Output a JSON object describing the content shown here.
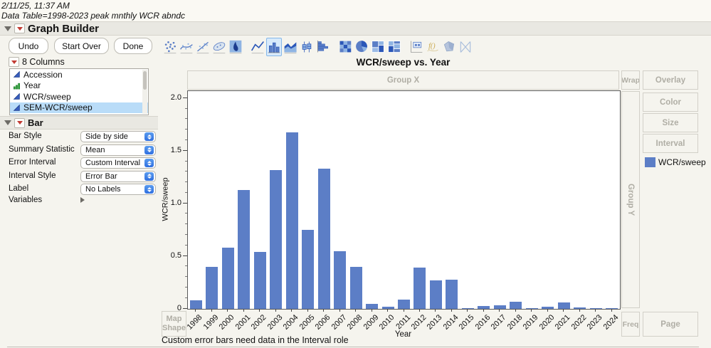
{
  "window": {
    "timestamp": "2/11/25, 11:37 AM",
    "data_table_line": "Data Table=1998-2023 peak mnthly WCR abndc",
    "outline_title": "Graph Builder",
    "status_message": "Custom error bars need data in the Interval role"
  },
  "toolbar": {
    "buttons": [
      "Undo",
      "Start Over",
      "Done"
    ],
    "element_icons": [
      "points",
      "smoother",
      "line-of-fit",
      "ellipse",
      "contour",
      "line",
      "bar",
      "area",
      "box-plot",
      "histogram",
      "heatmap",
      "pie",
      "treemap",
      "mosaic",
      "caption-box",
      "formula",
      "map-shapes",
      "parallel"
    ],
    "selected_icon": "bar"
  },
  "columns_panel": {
    "header": "8 Columns",
    "items": [
      {
        "label": "Accession",
        "type": "continuous",
        "selected": false
      },
      {
        "label": "Year",
        "type": "ordinal",
        "selected": false
      },
      {
        "label": "WCR/sweep",
        "type": "continuous",
        "selected": false
      },
      {
        "label": "SEM-WCR/sweep",
        "type": "continuous",
        "selected": true
      }
    ]
  },
  "bar_panel": {
    "header": "Bar",
    "properties": [
      {
        "key": "bar-style",
        "label": "Bar Style",
        "value": "Side by side"
      },
      {
        "key": "summary-statistic",
        "label": "Summary Statistic",
        "value": "Mean"
      },
      {
        "key": "error-interval",
        "label": "Error Interval",
        "value": "Custom Interval"
      },
      {
        "key": "interval-style",
        "label": "Interval Style",
        "value": "Error Bar"
      },
      {
        "key": "label",
        "label": "Label",
        "value": "No Labels"
      }
    ],
    "variables_label": "Variables"
  },
  "drop_zones": {
    "group_x": "Group X",
    "wrap": "Wrap",
    "overlay": "Overlay",
    "color": "Color",
    "size": "Size",
    "interval": "Interval",
    "group_y": "Group Y",
    "map_shape": "Map Shape",
    "freq": "Freq",
    "page": "Page"
  },
  "chart_data": {
    "type": "bar",
    "title": "WCR/sweep vs. Year",
    "xlabel": "Year",
    "ylabel": "WCR/sweep",
    "categories": [
      "1998",
      "1999",
      "2000",
      "2001",
      "2002",
      "2003",
      "2004",
      "2005",
      "2006",
      "2007",
      "2008",
      "2009",
      "2010",
      "2011",
      "2012",
      "2013",
      "2014",
      "2015",
      "2016",
      "2017",
      "2018",
      "2019",
      "2020",
      "2021",
      "2022",
      "2023",
      "2024"
    ],
    "values": [
      0.08,
      0.4,
      0.58,
      1.13,
      0.54,
      1.32,
      1.68,
      0.75,
      1.33,
      0.55,
      0.4,
      0.05,
      0.02,
      0.09,
      0.39,
      0.27,
      0.28,
      0.01,
      0.03,
      0.035,
      0.07,
      0.01,
      0.02,
      0.06,
      0.015,
      0.005,
      0.004
    ],
    "ylim": [
      0,
      2.07
    ],
    "yticks": [
      0,
      0.5,
      1.0,
      1.5,
      2.0
    ],
    "ytick_labels": [
      "0",
      "0.5",
      "1.0",
      "1.5",
      "2.0"
    ],
    "minor_tick_step": 0.1,
    "bar_color": "#5C7EC6",
    "legend": [
      {
        "label": "WCR/sweep",
        "color": "#5C7EC6"
      }
    ],
    "legend_position": "right",
    "grid": false
  }
}
